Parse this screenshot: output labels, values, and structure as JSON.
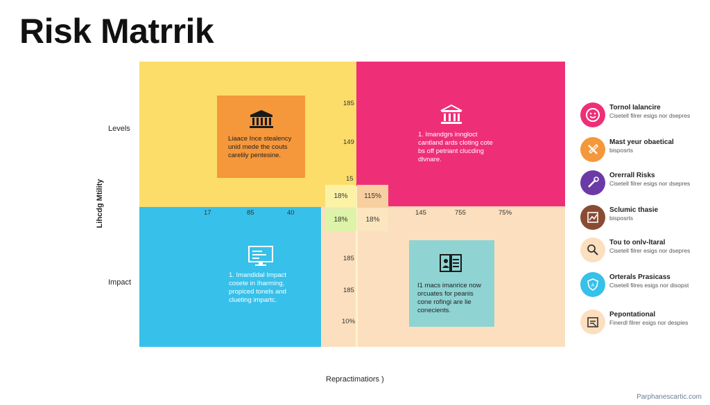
{
  "title": "Risk Matrrik",
  "y_axis_label": "Lihcdg Mtility",
  "x_axis_label": "Repractimatiors )",
  "row_labels": {
    "top": "Levels",
    "bottom": "Impact"
  },
  "quadrant_colors": {
    "top_left": "#fcdd6a",
    "top_right": "#ef2e78",
    "bottom_left": "#37c0ea",
    "bottom_right": "#fbdfbe"
  },
  "cards": {
    "top_left": {
      "icon": "columns-building-icon",
      "text": "Liaace Ince stealency unid mede the couts carelily pentesine."
    },
    "top_right": {
      "icon": "bank-building-icon",
      "text": "1. Imandgrs inngloct cantland ards cloting cote bs off petriant clucding dlvnare."
    },
    "bottom_left": {
      "icon": "monitor-icon",
      "text": "1. Imandidal Impact cosete in Iharming, propiced tonels and clueting impartc."
    },
    "bottom_right": {
      "icon": "document-id-icon",
      "text": "I1 macs imanrice now orcuates for peanis cone rofingi are lie conecients."
    }
  },
  "center_cells": [
    "18%",
    "115%",
    "18%",
    "18%"
  ],
  "vertical_numbers_top": [
    "185",
    "149",
    "15"
  ],
  "vertical_numbers_bottom": [
    "185",
    "185",
    "10%"
  ],
  "horizontal_numbers_left": [
    "17",
    "85",
    "40"
  ],
  "horizontal_numbers_right": [
    "145",
    "755",
    "75%"
  ],
  "legend": [
    {
      "title": "Tornol Ialancire",
      "desc": "Cisetell filrer esigs nor dsepres",
      "color": "#ef2e78",
      "icon": "smiley-icon"
    },
    {
      "title": "Mast yeur obaetical",
      "desc": "bisposrts",
      "color": "#f5973b",
      "icon": "tools-icon"
    },
    {
      "title": "Orerrall Risks",
      "desc": "Cisetell filrer esigs nor dsepres",
      "color": "#6b3aa6",
      "icon": "wrench-icon"
    },
    {
      "title": "Sclumic thasie",
      "desc": "bisposrts",
      "color": "#8a4b33",
      "icon": "chart-icon"
    },
    {
      "title": "Tou to onlv-ltaral",
      "desc": "Cisetell filrer esigs nor dsepres",
      "color": "#fbdfbe",
      "icon": "magnifier-icon"
    },
    {
      "title": "Orterals Prasicass",
      "desc": "Cisetell filres esigs nor disopst",
      "color": "#37c0ea",
      "icon": "shield-icon"
    },
    {
      "title": "Pepontational",
      "desc": "Finerdl filrer esigs nor despies",
      "color": "#fbdfbe",
      "icon": "clipboard-icon"
    }
  ],
  "footer": "Parphanescartic.com"
}
